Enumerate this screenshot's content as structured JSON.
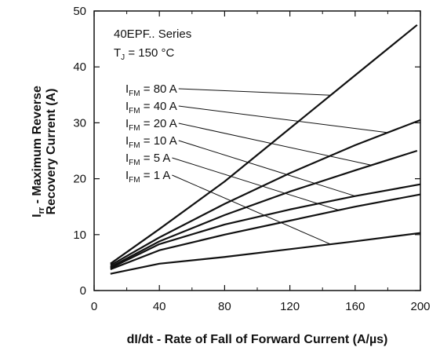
{
  "chart_data": {
    "type": "line",
    "title": "",
    "xlabel": "dI/dt - Rate of Fall of Forward Current (A/µs)",
    "ylabel_main": "I",
    "ylabel_sub": "rr",
    "ylabel_rest": " - Maximum Reverse",
    "ylabel_line2": "Recovery Current (A)",
    "xlim": [
      0,
      200
    ],
    "ylim": [
      0,
      50
    ],
    "xticks": [
      0,
      40,
      80,
      120,
      160,
      200
    ],
    "yticks": [
      0,
      10,
      20,
      30,
      40,
      50
    ],
    "grid": false,
    "annotation": {
      "series_line": "40EPF.. Series",
      "temp_main": "T",
      "temp_sub": "J",
      "temp_rest": " = 150 °C"
    },
    "series": [
      {
        "name_main": "I",
        "name_sub": "FM",
        "name_rest": " = 80 A",
        "leader_x": 145,
        "x": [
          10,
          40,
          80,
          120,
          160,
          198
        ],
        "values": [
          4.8,
          11.0,
          19.5,
          29.0,
          38.5,
          47.5
        ]
      },
      {
        "name_main": "I",
        "name_sub": "FM",
        "name_rest": " = 40 A",
        "leader_x": 180,
        "x": [
          10,
          40,
          80,
          120,
          160,
          200
        ],
        "values": [
          4.5,
          9.5,
          15.5,
          21.0,
          26.0,
          30.5
        ]
      },
      {
        "name_main": "I",
        "name_sub": "FM",
        "name_rest": " = 20 A",
        "leader_x": 170,
        "x": [
          10,
          40,
          80,
          120,
          160,
          198
        ],
        "values": [
          4.2,
          8.8,
          13.5,
          17.7,
          21.5,
          25.0
        ]
      },
      {
        "name_main": "I",
        "name_sub": "FM",
        "name_rest": " = 10 A",
        "leader_x": 160,
        "x": [
          10,
          40,
          80,
          120,
          160,
          200
        ],
        "values": [
          4.0,
          8.3,
          11.8,
          14.5,
          16.9,
          19.0
        ]
      },
      {
        "name_main": "I",
        "name_sub": "FM",
        "name_rest": " = 5 A",
        "leader_x": 150,
        "x": [
          10,
          40,
          80,
          120,
          160,
          200
        ],
        "values": [
          3.8,
          7.2,
          10.0,
          12.5,
          15.0,
          17.2
        ]
      },
      {
        "name_main": "I",
        "name_sub": "FM",
        "name_rest": " = 1 A",
        "leader_x": 145,
        "x": [
          10,
          40,
          80,
          120,
          160,
          200
        ],
        "values": [
          3.0,
          4.8,
          6.0,
          7.4,
          8.8,
          10.3
        ]
      }
    ]
  }
}
